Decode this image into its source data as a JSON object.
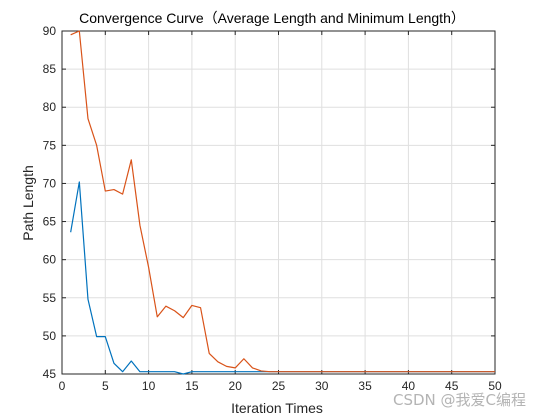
{
  "chart_data": {
    "type": "line",
    "title": "Convergence Curve（Average Length and Minimum Length）",
    "xlabel": "Iteration Times",
    "ylabel": "Path Length",
    "xlim": [
      0,
      50
    ],
    "ylim": [
      45,
      90
    ],
    "xticks": [
      0,
      5,
      10,
      15,
      20,
      25,
      30,
      35,
      40,
      45,
      50
    ],
    "yticks": [
      45,
      50,
      55,
      60,
      65,
      70,
      75,
      80,
      85,
      90
    ],
    "grid": true,
    "series": [
      {
        "color": "#0072BD",
        "x": [
          1,
          2,
          3,
          4,
          5,
          6,
          7,
          8,
          9,
          10,
          11,
          12,
          13,
          14,
          15,
          16,
          17,
          18,
          19,
          20,
          21,
          22,
          23,
          24,
          25,
          26,
          27,
          28,
          29,
          30,
          31,
          32,
          33,
          34,
          35,
          36,
          37,
          38,
          39,
          40,
          41,
          42,
          43,
          44,
          45,
          46,
          47,
          48,
          49,
          50
        ],
        "values": [
          63.6,
          70.2,
          54.8,
          49.9,
          49.9,
          46.4,
          45.3,
          46.7,
          45.3,
          45.3,
          45.3,
          45.3,
          45.3,
          45.0,
          45.3,
          45.3,
          45.3,
          45.3,
          45.3,
          45.3,
          45.3,
          45.3,
          45.3,
          45.3,
          45.3,
          45.3,
          45.3,
          45.3,
          45.3,
          45.3,
          45.3,
          45.3,
          45.3,
          45.3,
          45.3,
          45.3,
          45.3,
          45.3,
          45.3,
          45.3,
          45.3,
          45.3,
          45.3,
          45.3,
          45.3,
          45.3,
          45.3,
          45.3,
          45.3,
          45.3
        ]
      },
      {
        "color": "#D95319",
        "x": [
          1,
          2,
          3,
          4,
          5,
          6,
          7,
          8,
          9,
          10,
          11,
          12,
          13,
          14,
          15,
          16,
          17,
          18,
          19,
          20,
          21,
          22,
          23,
          24,
          25,
          26,
          27,
          28,
          29,
          30,
          31,
          32,
          33,
          34,
          35,
          36,
          37,
          38,
          39,
          40,
          41,
          42,
          43,
          44,
          45,
          46,
          47,
          48,
          49,
          50
        ],
        "values": [
          89.5,
          90.0,
          78.5,
          75.0,
          69.0,
          69.2,
          68.6,
          73.1,
          64.5,
          59.0,
          52.5,
          53.9,
          53.3,
          52.4,
          54.0,
          53.7,
          47.7,
          46.6,
          46.0,
          45.8,
          47.0,
          45.8,
          45.4,
          45.3,
          45.3,
          45.3,
          45.3,
          45.3,
          45.3,
          45.3,
          45.3,
          45.3,
          45.3,
          45.3,
          45.3,
          45.3,
          45.3,
          45.3,
          45.3,
          45.3,
          45.3,
          45.3,
          45.3,
          45.3,
          45.3,
          45.3,
          45.3,
          45.3,
          45.3,
          45.3
        ]
      }
    ]
  },
  "watermark": "CSDN @我爱C编程"
}
